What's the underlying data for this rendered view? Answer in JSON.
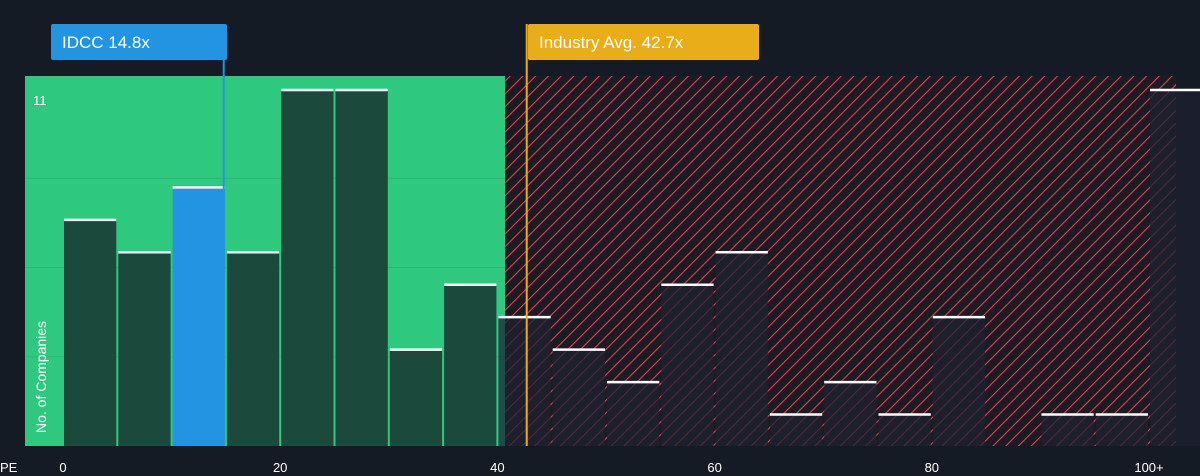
{
  "chart_data": {
    "type": "bar",
    "title": "",
    "xlabel": "PE",
    "ylabel": "No. of Companies",
    "y_max_label": "11",
    "ylim": [
      0,
      11
    ],
    "xlim": [
      0,
      100
    ],
    "x_ticks": [
      "0",
      "20",
      "40",
      "60",
      "80",
      "100+"
    ],
    "x_tick_values": [
      0,
      20,
      40,
      60,
      80,
      100
    ],
    "bin_width": 5,
    "bins": [
      {
        "x": 0,
        "value": 7
      },
      {
        "x": 5,
        "value": 6
      },
      {
        "x": 10,
        "value": 8
      },
      {
        "x": 15,
        "value": 6
      },
      {
        "x": 20,
        "value": 11
      },
      {
        "x": 25,
        "value": 11
      },
      {
        "x": 30,
        "value": 3
      },
      {
        "x": 35,
        "value": 5
      },
      {
        "x": 40,
        "value": 4
      },
      {
        "x": 45,
        "value": 3
      },
      {
        "x": 50,
        "value": 2
      },
      {
        "x": 55,
        "value": 5
      },
      {
        "x": 60,
        "value": 6
      },
      {
        "x": 65,
        "value": 1
      },
      {
        "x": 70,
        "value": 2
      },
      {
        "x": 75,
        "value": 1
      },
      {
        "x": 80,
        "value": 4
      },
      {
        "x": 85,
        "value": 0
      },
      {
        "x": 90,
        "value": 1
      },
      {
        "x": 95,
        "value": 1
      },
      {
        "x": 100,
        "value": 11
      }
    ],
    "highlight_bin_x": 10,
    "fair_zone_end": 40.7,
    "company": {
      "label": "IDCC 14.8x",
      "value": 14.8
    },
    "industry": {
      "label": "Industry Avg. 42.7x",
      "value": 42.7
    }
  },
  "colors": {
    "background": "#151b24",
    "green_zone": "#2ec97f",
    "red_zone_stripe": "#d9464f",
    "bar": "#1b4a3c",
    "bar_highlight": "#2394e1",
    "bar_top": "#ffffff",
    "company_callout": "#2394e1",
    "industry_callout": "#e8ad18"
  }
}
